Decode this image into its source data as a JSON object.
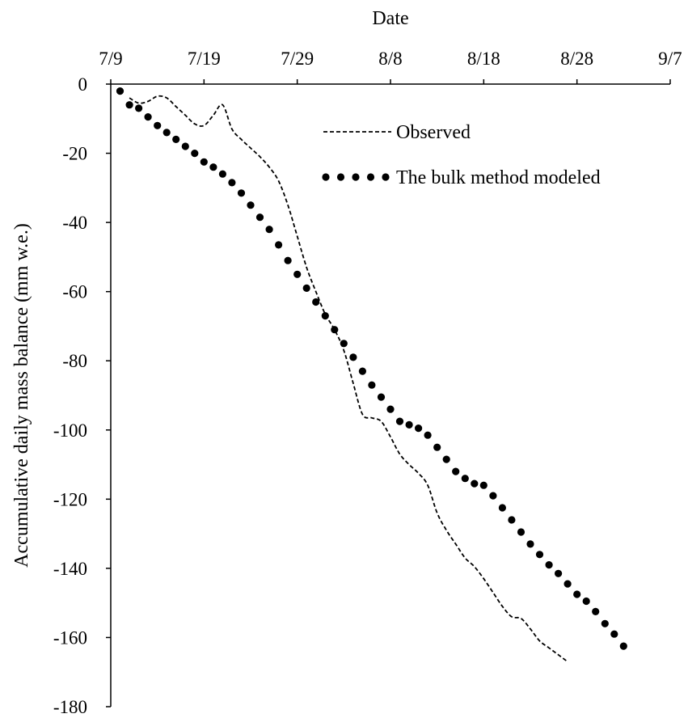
{
  "chart_data": {
    "type": "scatter",
    "xlabel": "Date",
    "ylabel": "Accumulative daily mass balance (mm w.e.)",
    "x_axis_position": "top",
    "x_tick_labels": [
      "7/9",
      "7/19",
      "7/29",
      "8/8",
      "8/18",
      "8/28",
      "9/7"
    ],
    "y_tick_labels": [
      "0",
      "-20",
      "-40",
      "-60",
      "-80",
      "-100",
      "-120",
      "-140",
      "-160",
      "-180"
    ],
    "xlim": [
      "7/9",
      "9/7"
    ],
    "ylim": [
      -180,
      0
    ],
    "grid": false,
    "legend_position": "top-right",
    "series": [
      {
        "name": "Observed",
        "style": "dashed-line",
        "color": "#000000",
        "points": [
          [
            "7/11",
            -4
          ],
          [
            "7/12",
            -5.5
          ],
          [
            "7/13",
            -5
          ],
          [
            "7/14",
            -3.5
          ],
          [
            "7/15",
            -4
          ],
          [
            "7/16",
            -6.5
          ],
          [
            "7/17",
            -9
          ],
          [
            "7/18",
            -11.5
          ],
          [
            "7/19",
            -12
          ],
          [
            "7/20",
            -9
          ],
          [
            "7/21",
            -6
          ],
          [
            "7/22",
            -13
          ],
          [
            "7/23",
            -16
          ],
          [
            "7/24",
            -18.5
          ],
          [
            "7/25",
            -21
          ],
          [
            "7/26",
            -24
          ],
          [
            "7/27",
            -28
          ],
          [
            "7/28",
            -35
          ],
          [
            "7/29",
            -44
          ],
          [
            "7/30",
            -53
          ],
          [
            "7/31",
            -60
          ],
          [
            "8/1",
            -66.5
          ],
          [
            "8/2",
            -71
          ],
          [
            "8/3",
            -77
          ],
          [
            "8/4",
            -86.5
          ],
          [
            "8/5",
            -95.5
          ],
          [
            "8/6",
            -96.5
          ],
          [
            "8/7",
            -97.5
          ],
          [
            "8/8",
            -102
          ],
          [
            "8/9",
            -107
          ],
          [
            "8/10",
            -110
          ],
          [
            "8/11",
            -112.5
          ],
          [
            "8/12",
            -116
          ],
          [
            "8/13",
            -124
          ],
          [
            "8/14",
            -129
          ],
          [
            "8/15",
            -133
          ],
          [
            "8/16",
            -137
          ],
          [
            "8/17",
            -139.5
          ],
          [
            "8/18",
            -143
          ],
          [
            "8/19",
            -147
          ],
          [
            "8/20",
            -151
          ],
          [
            "8/21",
            -154
          ],
          [
            "8/22",
            -154.5
          ],
          [
            "8/23",
            -157.5
          ],
          [
            "8/24",
            -161
          ],
          [
            "8/25",
            -163
          ],
          [
            "8/26",
            -165
          ],
          [
            "8/27",
            -167
          ]
        ]
      },
      {
        "name": "The bulk method modeled",
        "style": "dots",
        "color": "#000000",
        "points": [
          [
            "7/10",
            -2
          ],
          [
            "7/11",
            -6
          ],
          [
            "7/12",
            -7
          ],
          [
            "7/13",
            -9.5
          ],
          [
            "7/14",
            -12
          ],
          [
            "7/15",
            -14
          ],
          [
            "7/16",
            -16
          ],
          [
            "7/17",
            -18
          ],
          [
            "7/18",
            -20
          ],
          [
            "7/19",
            -22.5
          ],
          [
            "7/20",
            -24
          ],
          [
            "7/21",
            -26
          ],
          [
            "7/22",
            -28.5
          ],
          [
            "7/23",
            -31.5
          ],
          [
            "7/24",
            -35
          ],
          [
            "7/25",
            -38.5
          ],
          [
            "7/26",
            -42
          ],
          [
            "7/27",
            -46.5
          ],
          [
            "7/28",
            -51
          ],
          [
            "7/29",
            -55
          ],
          [
            "7/30",
            -59
          ],
          [
            "7/31",
            -63
          ],
          [
            "8/1",
            -67
          ],
          [
            "8/2",
            -71
          ],
          [
            "8/3",
            -75
          ],
          [
            "8/4",
            -79
          ],
          [
            "8/5",
            -83
          ],
          [
            "8/6",
            -87
          ],
          [
            "8/7",
            -90.5
          ],
          [
            "8/8",
            -94
          ],
          [
            "8/9",
            -97.5
          ],
          [
            "8/10",
            -98.5
          ],
          [
            "8/11",
            -99.5
          ],
          [
            "8/12",
            -101.5
          ],
          [
            "8/13",
            -105
          ],
          [
            "8/14",
            -108.5
          ],
          [
            "8/15",
            -112
          ],
          [
            "8/16",
            -114
          ],
          [
            "8/17",
            -115.5
          ],
          [
            "8/18",
            -116
          ],
          [
            "8/19",
            -119
          ],
          [
            "8/20",
            -122.5
          ],
          [
            "8/21",
            -126
          ],
          [
            "8/22",
            -129.5
          ],
          [
            "8/23",
            -133
          ],
          [
            "8/24",
            -136
          ],
          [
            "8/25",
            -139
          ],
          [
            "8/26",
            -141.5
          ],
          [
            "8/27",
            -144.5
          ],
          [
            "8/28",
            -147.5
          ],
          [
            "8/29",
            -149.5
          ],
          [
            "8/30",
            -152.5
          ],
          [
            "8/31",
            -156
          ],
          [
            "9/1",
            -159
          ],
          [
            "9/2",
            -162.5
          ]
        ]
      }
    ]
  }
}
